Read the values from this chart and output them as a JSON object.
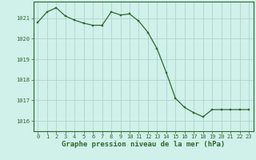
{
  "x": [
    0,
    1,
    2,
    3,
    4,
    5,
    6,
    7,
    8,
    9,
    10,
    11,
    12,
    13,
    14,
    15,
    16,
    17,
    18,
    19,
    20,
    21,
    22,
    23
  ],
  "y": [
    1020.8,
    1021.3,
    1021.5,
    1021.1,
    1020.9,
    1020.75,
    1020.65,
    1020.65,
    1021.3,
    1021.15,
    1021.2,
    1020.85,
    1020.3,
    1019.5,
    1018.35,
    1017.1,
    1016.65,
    1016.4,
    1016.2,
    1016.55,
    1016.55,
    1016.55,
    1016.55,
    1016.55
  ],
  "line_color": "#2d6a2d",
  "marker": "s",
  "marker_size": 1.8,
  "line_width": 0.9,
  "background_color": "#d0f0ea",
  "grid_color": "#a8cfc8",
  "xlabel": "Graphe pression niveau de la mer (hPa)",
  "xlabel_fontsize": 6.5,
  "xlabel_color": "#2d6a2d",
  "ylim": [
    1015.5,
    1021.8
  ],
  "xlim": [
    -0.5,
    23.5
  ],
  "yticks": [
    1016,
    1017,
    1018,
    1019,
    1020,
    1021
  ],
  "xticks": [
    0,
    1,
    2,
    3,
    4,
    5,
    6,
    7,
    8,
    9,
    10,
    11,
    12,
    13,
    14,
    15,
    16,
    17,
    18,
    19,
    20,
    21,
    22,
    23
  ],
  "tick_color": "#2d6a2d",
  "tick_fontsize": 5.0,
  "spine_color": "#2d6a2d"
}
